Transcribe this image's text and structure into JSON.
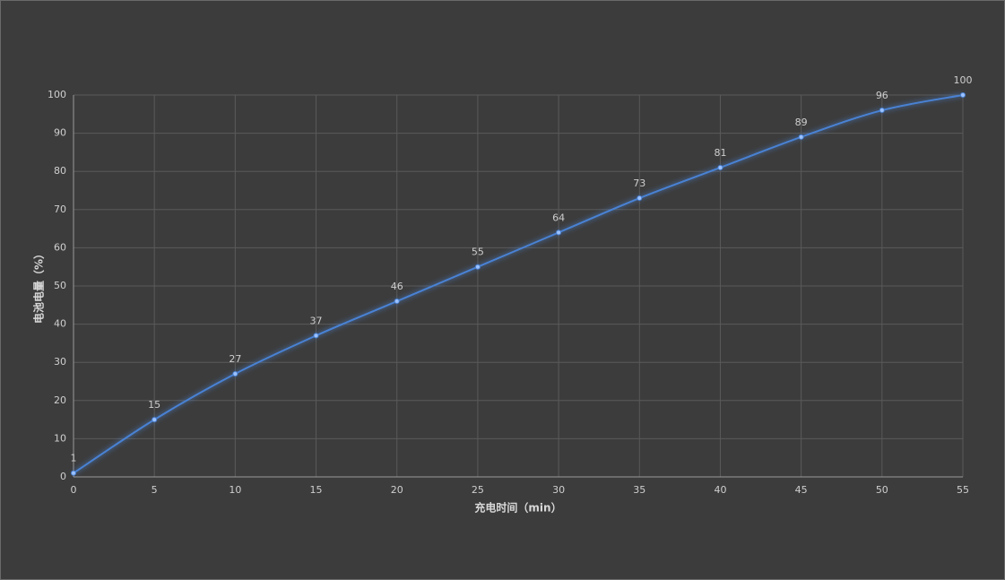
{
  "chart_data": {
    "type": "line",
    "xlabel": "充电时间（min）",
    "ylabel": "电池电量（%）",
    "x": [
      0,
      5,
      10,
      15,
      20,
      25,
      30,
      35,
      40,
      45,
      50,
      55
    ],
    "series": [
      {
        "color": "#4a82d4",
        "values": [
          1,
          15,
          27,
          37,
          46,
          55,
          64,
          73,
          81,
          89,
          96,
          100
        ]
      }
    ],
    "xlim": [
      0,
      55
    ],
    "xticks": [
      0,
      5,
      10,
      15,
      20,
      25,
      30,
      35,
      40,
      45,
      50,
      55
    ],
    "ylim": [
      0,
      100
    ],
    "yticks": [
      0,
      10,
      20,
      30,
      40,
      50,
      60,
      70,
      80,
      90,
      100
    ],
    "grid": true,
    "smooth": true
  }
}
